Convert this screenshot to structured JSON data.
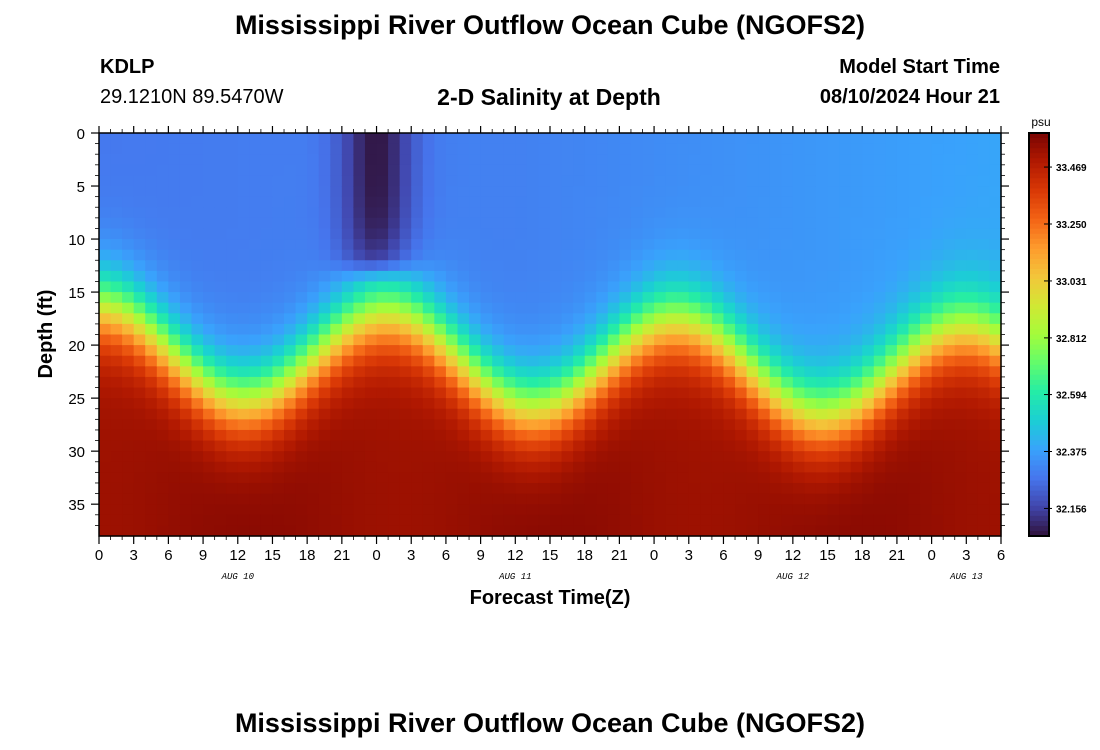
{
  "title": "Mississippi River Outflow Ocean Cube (NGOFS2)",
  "station": {
    "id": "KDLP",
    "coordinates": "29.1210N  89.5470W"
  },
  "model_start": {
    "label": "Model Start Time",
    "value": "08/10/2024 Hour 21"
  },
  "chart_data": {
    "type": "heatmap",
    "title": "2-D Salinity at Depth",
    "xlabel": "Forecast Time(Z)",
    "ylabel": "Depth (ft)",
    "colorbar_unit": "psu",
    "x_hours_range": [
      0,
      78
    ],
    "y_range": [
      0,
      38
    ],
    "y_inverted": true,
    "x_tick_labels": [
      "0",
      "3",
      "6",
      "9",
      "12",
      "15",
      "18",
      "21",
      "0",
      "3",
      "6",
      "9",
      "12",
      "15",
      "18",
      "21",
      "0",
      "3",
      "6",
      "9",
      "12",
      "15",
      "18",
      "21",
      "0",
      "3",
      "6"
    ],
    "y_ticks": [
      0,
      5,
      10,
      15,
      20,
      25,
      30,
      35
    ],
    "day_labels": [
      {
        "label": "AUG 10",
        "hour": 12
      },
      {
        "label": "AUG 11",
        "hour": 36
      },
      {
        "label": "AUG 12",
        "hour": 60
      },
      {
        "label": "AUG 13",
        "hour": 75
      }
    ],
    "colorbar_ticks": [
      33.469,
      33.25,
      33.031,
      32.812,
      32.594,
      32.375,
      32.156
    ],
    "value_range": [
      32.05,
      33.6
    ],
    "colormap": [
      "#30123b",
      "#4145ab",
      "#4675ed",
      "#39a2fc",
      "#1bcfd4",
      "#24eca6",
      "#61fc6c",
      "#a4fc3b",
      "#d1e834",
      "#f3c63a",
      "#fe9b2d",
      "#f36315",
      "#d93806",
      "#b11901",
      "#7a0402"
    ],
    "grid": false,
    "legend": "colorbar-right"
  }
}
